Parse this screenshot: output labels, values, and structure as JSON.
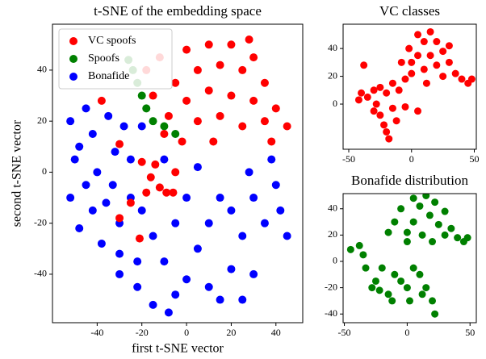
{
  "chart_data": [
    {
      "type": "scatter",
      "title": "t-SNE of the embedding space",
      "xlabel": "first t-SNE vector",
      "ylabel": "second t-SNE vector",
      "xlim": [
        -60,
        52
      ],
      "ylim": [
        -59,
        58
      ],
      "xticks": [
        -40,
        -20,
        0,
        20,
        40
      ],
      "yticks": [
        -40,
        -20,
        0,
        20,
        40
      ],
      "legend": "upper left",
      "series": [
        {
          "name": "VC spoofs",
          "color": "#ff0000",
          "x": [
            -18,
            -15,
            -12,
            -8,
            -5,
            0,
            0,
            5,
            5,
            10,
            10,
            15,
            15,
            20,
            20,
            25,
            25,
            30,
            30,
            35,
            35,
            40,
            45,
            -10,
            12,
            38,
            -2,
            28,
            -38,
            -30,
            -20,
            -16,
            -12,
            -9,
            -18,
            -30,
            -21,
            -6,
            -14,
            -5,
            -25
          ],
          "values": [
            40,
            30,
            45,
            22,
            35,
            48,
            28,
            40,
            20,
            50,
            32,
            42,
            22,
            50,
            30,
            40,
            18,
            45,
            28,
            35,
            20,
            25,
            18,
            15,
            12,
            12,
            12,
            52,
            28,
            11,
            4,
            -2,
            -6,
            -8,
            -8,
            -18,
            -26,
            -8,
            3,
            0,
            -12
          ]
        },
        {
          "name": "Spoofs",
          "color": "#008000",
          "x": [
            -24,
            -22,
            -20,
            -18,
            -15,
            -10,
            -5,
            -26
          ],
          "values": [
            40,
            35,
            30,
            25,
            20,
            18,
            15,
            44
          ]
        },
        {
          "name": "Bonafide",
          "color": "#0000ff",
          "x": [
            -52,
            -50,
            -52,
            -48,
            -45,
            -42,
            -40,
            -42,
            -38,
            -35,
            -32,
            -33,
            -30,
            -28,
            -25,
            -25,
            -45,
            -36,
            -48,
            -30,
            -20,
            -20,
            -30,
            -22,
            -15,
            -10,
            -15,
            -5,
            0,
            5,
            10,
            15,
            20,
            25,
            30,
            35,
            40,
            42,
            38,
            28,
            15,
            5,
            -5,
            -8,
            0,
            20,
            30,
            10,
            -10,
            -22,
            45,
            25
          ],
          "values": [
            20,
            5,
            -10,
            -22,
            25,
            15,
            0,
            -15,
            -28,
            22,
            8,
            -5,
            -20,
            18,
            5,
            -10,
            -5,
            -12,
            10,
            -32,
            -15,
            18,
            -40,
            -45,
            -52,
            -35,
            -25,
            -20,
            -10,
            -30,
            -45,
            -50,
            -38,
            -25,
            -40,
            -20,
            -5,
            -15,
            5,
            0,
            -10,
            2,
            -48,
            -55,
            -42,
            -15,
            -10,
            -20,
            5,
            -35,
            -25,
            -50
          ]
        }
      ]
    },
    {
      "type": "scatter",
      "title": "VC classes",
      "xlim": [
        -54.5,
        51.6
      ],
      "ylim": [
        -32.5,
        57.5
      ],
      "xticks": [
        -50,
        0,
        50
      ],
      "yticks": [
        0,
        20,
        40
      ],
      "series": [
        {
          "color": "#ff0000",
          "x": [
            -8,
            -2,
            0,
            5,
            5,
            10,
            10,
            15,
            15,
            20,
            20,
            25,
            30,
            35,
            40,
            45,
            48,
            0,
            12,
            25,
            30,
            -38,
            -40,
            -42,
            -35,
            -30,
            -25,
            -20,
            -15,
            -10,
            -5,
            -30,
            -25,
            -22,
            -20,
            -18,
            -15,
            -12,
            -5,
            5,
            -28
          ],
          "values": [
            30,
            40,
            22,
            50,
            35,
            45,
            25,
            52,
            35,
            45,
            28,
            38,
            30,
            22,
            18,
            15,
            18,
            30,
            15,
            20,
            42,
            28,
            8,
            3,
            5,
            10,
            12,
            8,
            15,
            10,
            18,
            -5,
            -8,
            -15,
            -20,
            -25,
            -3,
            -12,
            -2,
            -5,
            0
          ]
        }
      ]
    },
    {
      "type": "scatter",
      "title": "Bonafide distribution",
      "xlim": [
        -51,
        55
      ],
      "ylim": [
        -46.6,
        51.5
      ],
      "xticks": [
        -50,
        0,
        50
      ],
      "yticks": [
        -40,
        -20,
        0,
        20,
        40
      ],
      "series": [
        {
          "color": "#008000",
          "x": [
            -10,
            -5,
            0,
            5,
            5,
            10,
            12,
            15,
            18,
            22,
            25,
            30,
            35,
            40,
            45,
            48,
            0,
            20,
            -15,
            30,
            -45,
            -38,
            -35,
            -33,
            -20,
            -25,
            -22,
            -15,
            -10,
            -12,
            -5,
            0,
            2,
            10,
            12,
            15,
            20,
            22,
            -28,
            5
          ],
          "values": [
            30,
            40,
            22,
            48,
            30,
            42,
            20,
            50,
            35,
            45,
            28,
            38,
            25,
            18,
            15,
            18,
            15,
            15,
            22,
            20,
            9,
            12,
            5,
            -5,
            -5,
            -15,
            -22,
            -25,
            -10,
            -30,
            -15,
            -20,
            -30,
            -10,
            -25,
            -20,
            -30,
            -40,
            -20,
            -5
          ]
        }
      ]
    }
  ]
}
